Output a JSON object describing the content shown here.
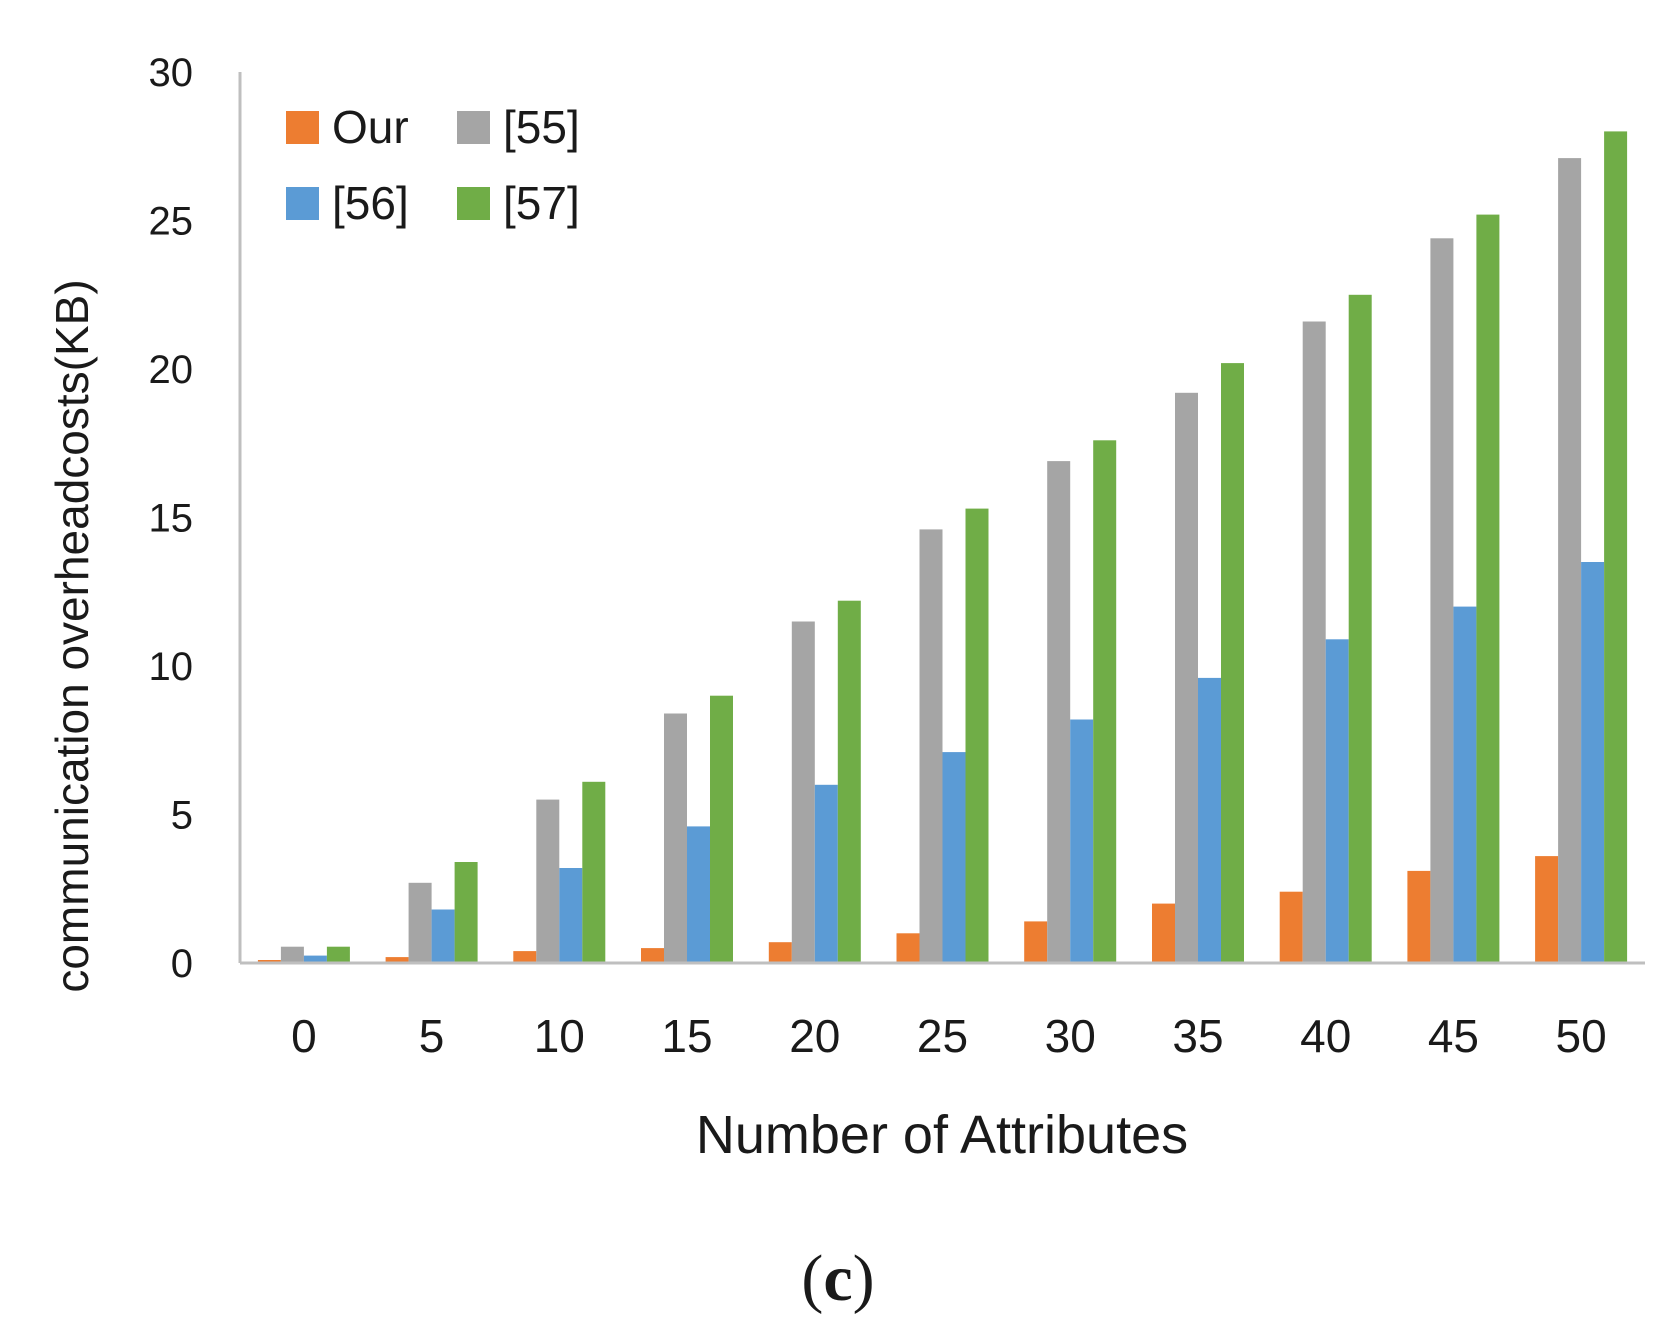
{
  "chart_data": {
    "type": "bar",
    "title": "",
    "xlabel": "Number of Attributes",
    "ylabel": "communication overheadcosts(KB)",
    "caption_open": "(",
    "caption_letter": "c",
    "caption_close": ")",
    "categories": [
      "0",
      "5",
      "10",
      "15",
      "20",
      "25",
      "30",
      "35",
      "40",
      "45",
      "50"
    ],
    "ylim": [
      0,
      30
    ],
    "yticks": [
      "0",
      "5",
      "10",
      "15",
      "20",
      "25",
      "30"
    ],
    "grid": false,
    "legend_position": "top-left",
    "series": [
      {
        "name": "Our",
        "color": "#ED7D31",
        "values": [
          0.1,
          0.2,
          0.4,
          0.5,
          0.7,
          1.0,
          1.4,
          2.0,
          2.4,
          3.1,
          3.6
        ]
      },
      {
        "name": "[55]",
        "color": "#A5A5A5",
        "values": [
          0.55,
          2.7,
          5.5,
          8.4,
          11.5,
          14.6,
          16.9,
          19.2,
          21.6,
          24.4,
          27.1
        ]
      },
      {
        "name": "[56]",
        "color": "#5B9BD5",
        "values": [
          0.25,
          1.8,
          3.2,
          4.6,
          6.0,
          7.1,
          8.2,
          9.6,
          10.9,
          12.0,
          13.5
        ]
      },
      {
        "name": "[57]",
        "color": "#70AD47",
        "values": [
          0.55,
          3.4,
          6.1,
          9.0,
          12.2,
          15.3,
          17.6,
          20.2,
          22.5,
          25.2,
          28.0
        ]
      }
    ]
  }
}
